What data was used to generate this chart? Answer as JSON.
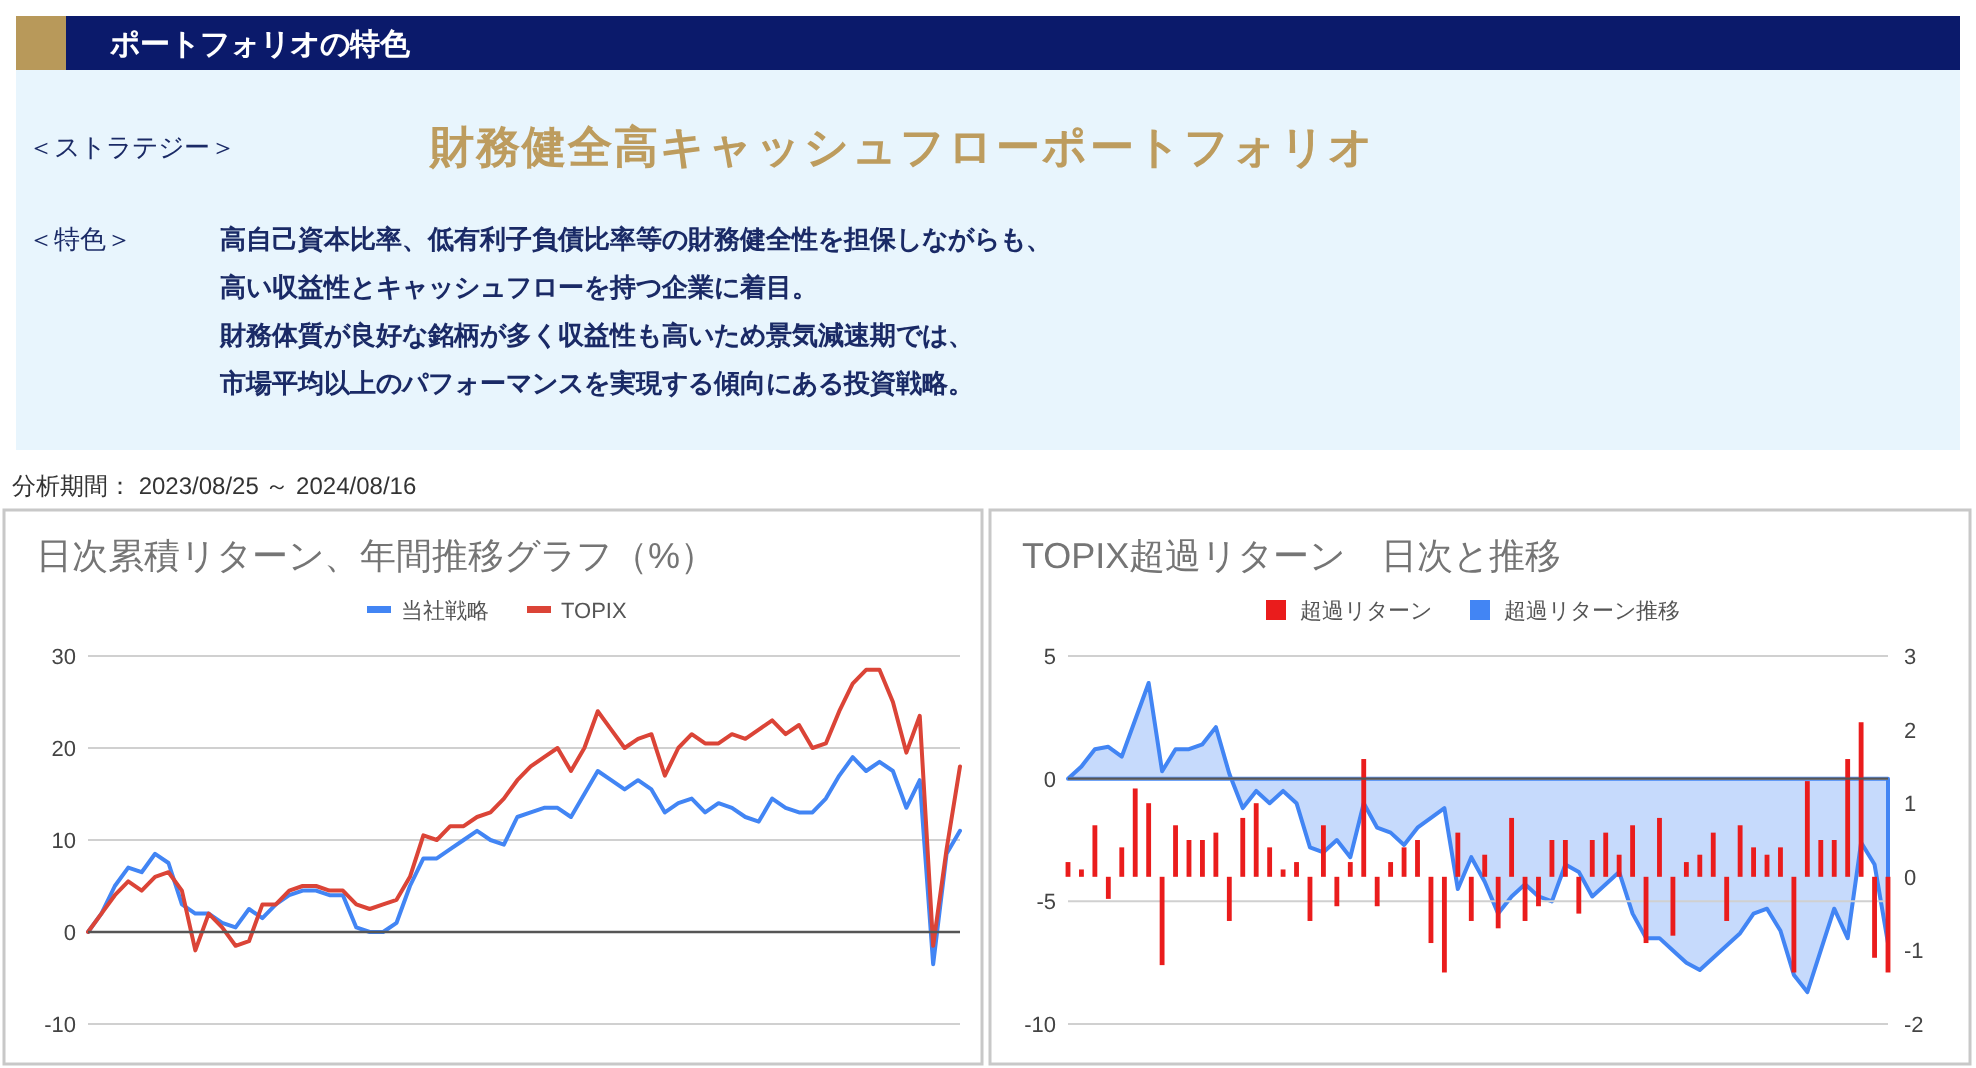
{
  "chart_data": [
    {
      "type": "other",
      "title": "ポートフォリオの特色",
      "subtitle": "財務健全高キャッシュフローポートフォリオ",
      "annotations": [
        "＜ストラテジー＞",
        "＜特色＞",
        "高自己資本比率、低有利子負債比率等の財務健全性を担保しながらも、",
        "高い収益性とキャッシュフローを持つ企業に着目。",
        "財務体質が良好な銘柄が多く収益性も高いため景気減速期では、",
        "市場平均以上のパフォーマンスを実現する傾向にある投資戦略。",
        "分析期間： 2023/08/25 ～ 2024/08/16"
      ]
    },
    {
      "type": "line",
      "title": "日次累積リターン、年間推移グラフ（%）",
      "legend": "top",
      "grid": "y",
      "ylim": [
        -10,
        30
      ],
      "yticks": [
        -10,
        0,
        10,
        20,
        30
      ],
      "categories": [
        null,
        null,
        null,
        null,
        null,
        null,
        null,
        null,
        null,
        null,
        null,
        null,
        null,
        null,
        null,
        null,
        null,
        null,
        null,
        null,
        null,
        null,
        null,
        null,
        null,
        null,
        null,
        null,
        null,
        null,
        null,
        null,
        null,
        null,
        null,
        null,
        null,
        null,
        null,
        null,
        null,
        null,
        null,
        null,
        null,
        null,
        null,
        null,
        null,
        null,
        null,
        null,
        null,
        null,
        null,
        null,
        null,
        null,
        null,
        null,
        null,
        null,
        null,
        null,
        null,
        null
      ],
      "series": [
        {
          "name": "当社戦略",
          "color": "#4285f4",
          "values": [
            0,
            2,
            5,
            7,
            6.5,
            8.5,
            7.5,
            3,
            2,
            2,
            1,
            0.5,
            2.5,
            1.5,
            3,
            4,
            4.5,
            4.5,
            4,
            4,
            0.5,
            0,
            0,
            1,
            5,
            8,
            8,
            9,
            10,
            11,
            10,
            9.5,
            12.5,
            13,
            13.5,
            13.5,
            12.5,
            15,
            17.5,
            16.5,
            15.5,
            16.5,
            15.5,
            13,
            14,
            14.5,
            13,
            14,
            13.5,
            12.5,
            12,
            14.5,
            13.5,
            13,
            13,
            14.5,
            17,
            19,
            17.5,
            18.5,
            17.5,
            13.5,
            16.5,
            -3.5,
            8.5,
            11
          ]
        },
        {
          "name": "TOPIX",
          "color": "#db4437",
          "values": [
            0,
            2,
            4,
            5.5,
            4.5,
            6,
            6.5,
            4.5,
            -2,
            2,
            0.5,
            -1.5,
            -1,
            3,
            3,
            4.5,
            5,
            5,
            4.5,
            4.5,
            3,
            2.5,
            3,
            3.5,
            6,
            10.5,
            10,
            11.5,
            11.5,
            12.5,
            13,
            14.5,
            16.5,
            18,
            19,
            20,
            17.5,
            20,
            24,
            22,
            20,
            21,
            21.5,
            17,
            20,
            21.5,
            20.5,
            20.5,
            21.5,
            21,
            22,
            23,
            21.5,
            22.5,
            20,
            20.5,
            24,
            27,
            28.5,
            28.5,
            25,
            19.5,
            23.5,
            -1.5,
            9,
            18
          ]
        }
      ]
    },
    {
      "type": "bar",
      "title": "TOPIX超過リターン　日次と推移",
      "legend": "top",
      "grid": "y",
      "ylim": [
        -10,
        5
      ],
      "yticks": [
        -10,
        -5,
        0,
        5
      ],
      "y2lim": [
        -2,
        3
      ],
      "y2ticks": [
        -2,
        -1,
        0,
        1,
        2,
        3
      ],
      "categories": [
        null,
        null,
        null,
        null,
        null,
        null,
        null,
        null,
        null,
        null,
        null,
        null,
        null,
        null,
        null,
        null,
        null,
        null,
        null,
        null,
        null,
        null,
        null,
        null,
        null,
        null,
        null,
        null,
        null,
        null,
        null,
        null,
        null,
        null,
        null,
        null,
        null,
        null,
        null,
        null,
        null,
        null,
        null,
        null,
        null,
        null,
        null,
        null,
        null,
        null,
        null,
        null,
        null,
        null,
        null,
        null,
        null,
        null,
        null,
        null,
        null,
        null
      ],
      "series": [
        {
          "name": "超過リターン",
          "type": "bar",
          "axis": "y2",
          "color": "#ea1c1c",
          "values": [
            0.2,
            0.1,
            0.7,
            -0.3,
            0.4,
            1.2,
            1.0,
            -1.2,
            0.7,
            0.5,
            0.5,
            0.6,
            -0.6,
            0.8,
            1.0,
            0.4,
            0.1,
            0.2,
            -0.6,
            0.7,
            -0.4,
            0.2,
            1.6,
            -0.4,
            0.2,
            0.4,
            0.5,
            -0.9,
            -1.3,
            0.6,
            -0.6,
            0.3,
            -0.7,
            0.8,
            -0.6,
            -0.4,
            0.5,
            0.5,
            -0.5,
            0.5,
            0.6,
            0.3,
            0.7,
            -0.9,
            0.8,
            -0.8,
            0.2,
            0.3,
            0.6,
            -0.6,
            0.7,
            0.4,
            0.3,
            0.4,
            -1.3,
            1.3,
            0.5,
            0.5,
            1.6,
            2.1,
            -1.1,
            -1.3
          ]
        },
        {
          "name": "超過リターン推移",
          "type": "area",
          "color": "#4285f4",
          "values": [
            0,
            0.5,
            1.2,
            1.3,
            0.9,
            2.4,
            3.9,
            0.3,
            1.2,
            1.2,
            1.4,
            2.1,
            0.2,
            -1.2,
            -0.5,
            -1,
            -0.5,
            -1,
            -2.8,
            -3,
            -2.5,
            -3.2,
            -1,
            -2,
            -2.2,
            -2.7,
            -2,
            -1.6,
            -1.2,
            -4.5,
            -3.2,
            -4.2,
            -5.5,
            -4.8,
            -4.3,
            -4.8,
            -5,
            -3.5,
            -3.8,
            -4.8,
            -4.3,
            -3.8,
            -5.5,
            -6.5,
            -6.5,
            -7,
            -7.5,
            -7.8,
            -7.3,
            -6.8,
            -6.3,
            -5.5,
            -5.3,
            -6.2,
            -8,
            -8.7,
            -7,
            -5.3,
            -6.5,
            -2.6,
            -3.5,
            -6.7
          ]
        }
      ]
    }
  ]
}
